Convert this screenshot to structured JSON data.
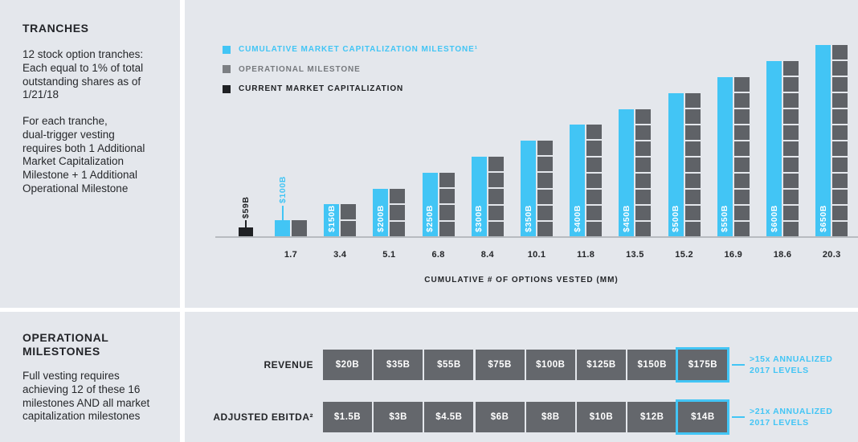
{
  "colors": {
    "cyan": "#42c5f5",
    "bar_gray": "#5f6267",
    "cell_gray": "#64676c",
    "legend_gray": "#7c7f83",
    "black": "#1f2124",
    "panel_bg": "#e4e7ec",
    "axis_line": "#b7bbc0",
    "text_dark": "#26282b",
    "white": "#ffffff"
  },
  "tranches_panel": {
    "heading": "TRANCHES",
    "para1": "12 stock option tranches:\nEach equal to 1% of total\noutstanding shares as of\n1/21/18",
    "para2": "For each tranche,\ndual-trigger vesting\nrequires both 1 Additional\nMarket Capitalization\nMilestone + 1 Additional\nOperational Milestone"
  },
  "operational_panel": {
    "heading": "OPERATIONAL\nMILESTONES",
    "para": "Full vesting requires\nachieving 12 of these 16\nmilestones AND all market\ncapitalization milestones"
  },
  "legend": {
    "items": [
      {
        "label": "CUMULATIVE MARKET CAPITALIZATION MILESTONE¹",
        "color": "#42c5f5",
        "text_color": "#42c5f5"
      },
      {
        "label": "OPERATIONAL MILESTONE",
        "color": "#7c7f83",
        "text_color": "#76797d"
      },
      {
        "label": "CURRENT MARKET CAPITALIZATION",
        "color": "#1f2124",
        "text_color": "#1d1f22"
      }
    ]
  },
  "chart_data": {
    "type": "bar",
    "xlabel": "CUMULATIVE # OF OPTIONS VESTED (MM)",
    "x": [
      1.7,
      3.4,
      5.1,
      6.8,
      8.4,
      10.1,
      11.8,
      13.5,
      15.2,
      16.9,
      18.6,
      20.3
    ],
    "series": [
      {
        "name": "CUMULATIVE MARKET CAPITALIZATION MILESTONE¹",
        "values": [
          100,
          150,
          200,
          250,
          300,
          350,
          400,
          450,
          500,
          550,
          600,
          650
        ],
        "labels": [
          "$100B",
          "$150B",
          "$200B",
          "$250B",
          "$300B",
          "$350B",
          "$400B",
          "$450B",
          "$500B",
          "$550B",
          "$600B",
          "$650B"
        ]
      },
      {
        "name": "OPERATIONAL MILESTONE",
        "segments": [
          1,
          2,
          3,
          4,
          5,
          6,
          7,
          8,
          9,
          10,
          11,
          12
        ]
      },
      {
        "name": "CURRENT MARKET CAPITALIZATION",
        "value": 59,
        "label": "$59B"
      }
    ]
  },
  "operational_table": {
    "rows": [
      {
        "label": "REVENUE",
        "values": [
          "$20B",
          "$35B",
          "$55B",
          "$75B",
          "$100B",
          "$125B",
          "$150B",
          "$175B"
        ],
        "highlight_index": 7,
        "annotation": ">15x ANNUALIZED\n2017 LEVELS"
      },
      {
        "label": "ADJUSTED EBITDA²",
        "values": [
          "$1.5B",
          "$3B",
          "$4.5B",
          "$6B",
          "$8B",
          "$10B",
          "$12B",
          "$14B"
        ],
        "highlight_index": 7,
        "annotation": ">21x ANNUALIZED\n2017 LEVELS"
      }
    ]
  }
}
